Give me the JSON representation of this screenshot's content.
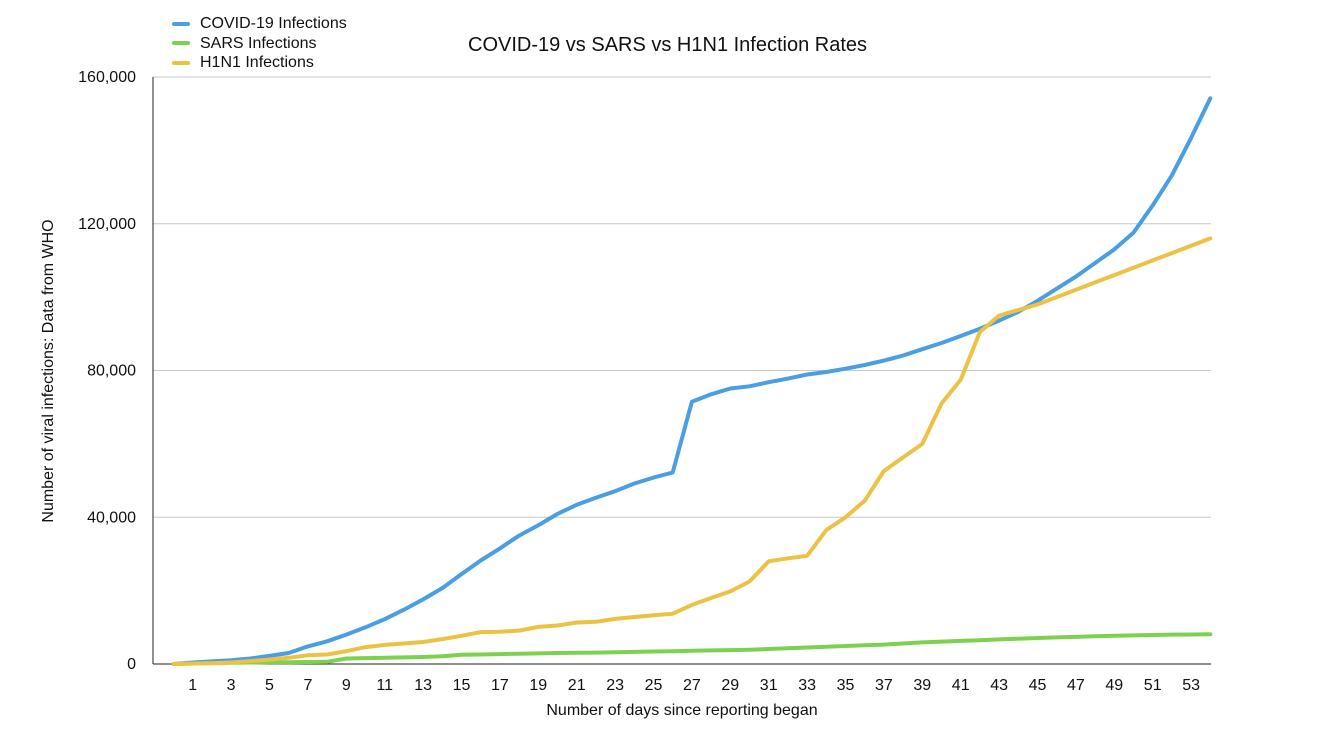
{
  "chart_data": {
    "type": "line",
    "title": "COVID-19 vs SARS vs H1N1 Infection Rates",
    "xlabel": "Number of days since reporting began",
    "ylabel": "Number of viral infections: Data from WHO",
    "ylim": [
      0,
      160000
    ],
    "xlim": [
      0,
      54
    ],
    "grid": true,
    "legend_position": "top-left",
    "y_ticks": [
      "0",
      "40,000",
      "80,000",
      "120,000",
      "160,000"
    ],
    "x_ticks": [
      "1",
      "3",
      "5",
      "7",
      "9",
      "11",
      "13",
      "15",
      "17",
      "19",
      "21",
      "23",
      "25",
      "27",
      "29",
      "31",
      "33",
      "35",
      "37",
      "39",
      "41",
      "43",
      "45",
      "47",
      "49",
      "51",
      "53"
    ],
    "x": [
      0,
      1,
      2,
      3,
      4,
      5,
      6,
      7,
      8,
      9,
      10,
      11,
      12,
      13,
      14,
      15,
      16,
      17,
      18,
      19,
      20,
      21,
      22,
      23,
      24,
      25,
      26,
      27,
      28,
      29,
      30,
      31,
      32,
      33,
      34,
      35,
      36,
      37,
      38,
      39,
      40,
      41,
      42,
      43,
      44,
      45,
      46,
      47,
      48,
      49,
      50,
      51,
      52,
      53,
      54
    ],
    "series": [
      {
        "name": "COVID-19 Infections",
        "color": "#4a9ee3",
        "values": [
          0,
          400,
          700,
          1000,
          1500,
          2200,
          3000,
          4800,
          6200,
          8000,
          10000,
          12200,
          14800,
          17600,
          20700,
          24500,
          28200,
          31500,
          35000,
          37800,
          40900,
          43400,
          45300,
          47100,
          49200,
          50800,
          52200,
          71500,
          73500,
          75100,
          75700,
          76800,
          77800,
          78900,
          79600,
          80500,
          81500,
          82700,
          84100,
          85800,
          87500,
          89400,
          91400,
          93600,
          96000,
          99000,
          102300,
          105600,
          109300,
          113000,
          117600,
          125000,
          133200,
          143400,
          154200
        ]
      },
      {
        "name": "SARS Infections",
        "color": "#7cd24e",
        "values": [
          0,
          150,
          250,
          350,
          400,
          450,
          500,
          550,
          600,
          1500,
          1600,
          1700,
          1800,
          1900,
          2100,
          2500,
          2600,
          2700,
          2800,
          2900,
          3000,
          3050,
          3100,
          3200,
          3300,
          3400,
          3500,
          3600,
          3700,
          3800,
          3900,
          4100,
          4300,
          4500,
          4700,
          4900,
          5100,
          5300,
          5600,
          5900,
          6100,
          6300,
          6500,
          6700,
          6900,
          7100,
          7250,
          7400,
          7550,
          7700,
          7800,
          7900,
          8000,
          8050,
          8100
        ]
      },
      {
        "name": "H1N1 Infections",
        "color": "#ecc245",
        "values": [
          0,
          100,
          200,
          400,
          800,
          1200,
          1700,
          2400,
          2600,
          3500,
          4600,
          5200,
          5600,
          6000,
          6800,
          7700,
          8700,
          8800,
          9100,
          10100,
          10500,
          11300,
          11500,
          12300,
          12800,
          13300,
          13700,
          16100,
          18000,
          19800,
          22500,
          28000,
          28800,
          29500,
          36500,
          40000,
          44500,
          52600,
          56300,
          60000,
          71000,
          77500,
          90500,
          95000,
          96500,
          98000,
          100000,
          102000,
          104000,
          106000,
          108000,
          110000,
          112000,
          114000,
          116000
        ]
      }
    ]
  }
}
